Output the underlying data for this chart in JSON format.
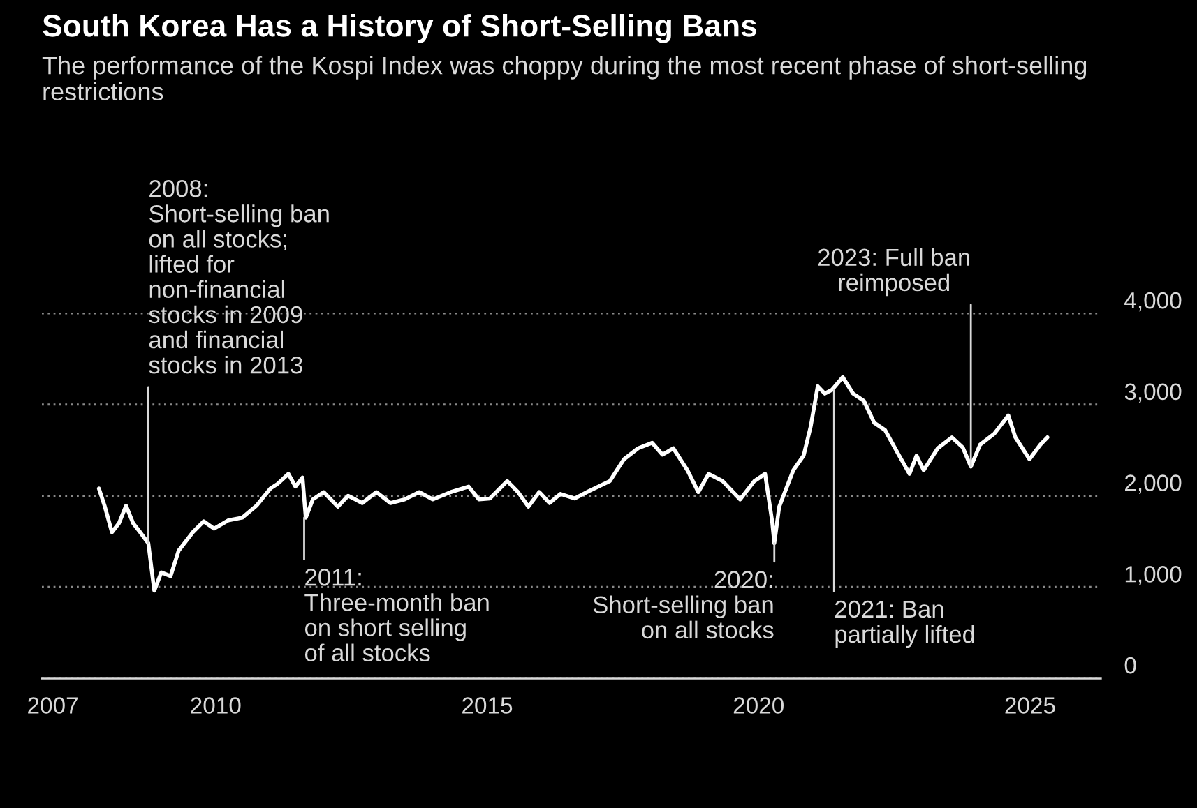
{
  "chart_data": {
    "type": "line",
    "title": "South Korea Has a History of Short-Selling Bans",
    "subtitle": "The performance of the Kospi Index was choppy during the most recent phase of short-selling restrictions",
    "x": [
      2007.85,
      2007.96,
      2008.09,
      2008.22,
      2008.35,
      2008.48,
      2008.61,
      2008.76,
      2008.87,
      2009.0,
      2009.17,
      2009.32,
      2009.58,
      2009.78,
      2009.97,
      2010.23,
      2010.49,
      2010.75,
      2011.01,
      2011.14,
      2011.34,
      2011.47,
      2011.6,
      2011.66,
      2011.79,
      2011.99,
      2012.25,
      2012.44,
      2012.7,
      2012.96,
      2013.22,
      2013.48,
      2013.75,
      2014.0,
      2014.33,
      2014.66,
      2014.85,
      2015.05,
      2015.37,
      2015.57,
      2015.76,
      2015.96,
      2016.15,
      2016.35,
      2016.61,
      2016.87,
      2017.26,
      2017.52,
      2017.78,
      2018.04,
      2018.23,
      2018.43,
      2018.69,
      2018.89,
      2019.08,
      2019.34,
      2019.66,
      2019.92,
      2020.12,
      2020.25,
      2020.29,
      2020.38,
      2020.64,
      2020.83,
      2020.96,
      2021.09,
      2021.22,
      2021.35,
      2021.55,
      2021.74,
      2021.94,
      2022.13,
      2022.33,
      2022.59,
      2022.78,
      2022.91,
      2023.04,
      2023.3,
      2023.56,
      2023.76,
      2023.91,
      2024.08,
      2024.34,
      2024.6,
      2024.73,
      2024.99,
      2025.19,
      2025.32
    ],
    "series": [
      {
        "color": "#ffffff",
        "values": [
          2080,
          1880,
          1600,
          1700,
          1890,
          1700,
          1600,
          1480,
          960,
          1160,
          1120,
          1400,
          1600,
          1720,
          1640,
          1730,
          1760,
          1890,
          2080,
          2130,
          2240,
          2100,
          2200,
          1760,
          1960,
          2040,
          1880,
          2000,
          1920,
          2040,
          1920,
          1960,
          2040,
          1960,
          2040,
          2100,
          1960,
          1970,
          2160,
          2040,
          1880,
          2040,
          1920,
          2020,
          1970,
          2050,
          2160,
          2400,
          2520,
          2580,
          2450,
          2520,
          2280,
          2040,
          2240,
          2160,
          1960,
          2160,
          2240,
          1720,
          1480,
          1880,
          2280,
          2440,
          2760,
          3200,
          3120,
          3160,
          3300,
          3120,
          3040,
          2800,
          2720,
          2440,
          2240,
          2440,
          2280,
          2520,
          2640,
          2530,
          2320,
          2560,
          2680,
          2880,
          2640,
          2400,
          2560,
          2640
        ]
      }
    ],
    "annotations": [
      {
        "text": "2008:\nShort-selling ban\non all stocks;\nlifted for\nnon-financial\nstocks in 2009\nand financial\nstocks in 2013",
        "x": 2008.76,
        "y": 1480
      },
      {
        "text": "2011:\nThree-month ban\non short selling\nof all stocks",
        "x": 2011.63,
        "y": 1760
      },
      {
        "text": "2020:\nShort-selling ban\non all stocks",
        "x": 2020.29,
        "y": 1480
      },
      {
        "text": "2021: Ban\npartially lifted",
        "x": 2021.39,
        "y": 3160
      },
      {
        "text": "2023: Full ban\nreimposed",
        "x": 2023.91,
        "y": 2320
      }
    ],
    "xlim": [
      2006.8,
      2026.3
    ],
    "xticks": [
      2007,
      2010,
      2015,
      2020,
      2025
    ],
    "ylim": [
      0,
      4000
    ],
    "yticks": [
      0,
      {
        "value": 1000,
        "label": "1,000"
      },
      {
        "value": 2000,
        "label": "2,000"
      },
      {
        "value": 3000,
        "label": "3,000"
      },
      {
        "value": 4000,
        "label": "4,000"
      }
    ],
    "grid": "y"
  }
}
